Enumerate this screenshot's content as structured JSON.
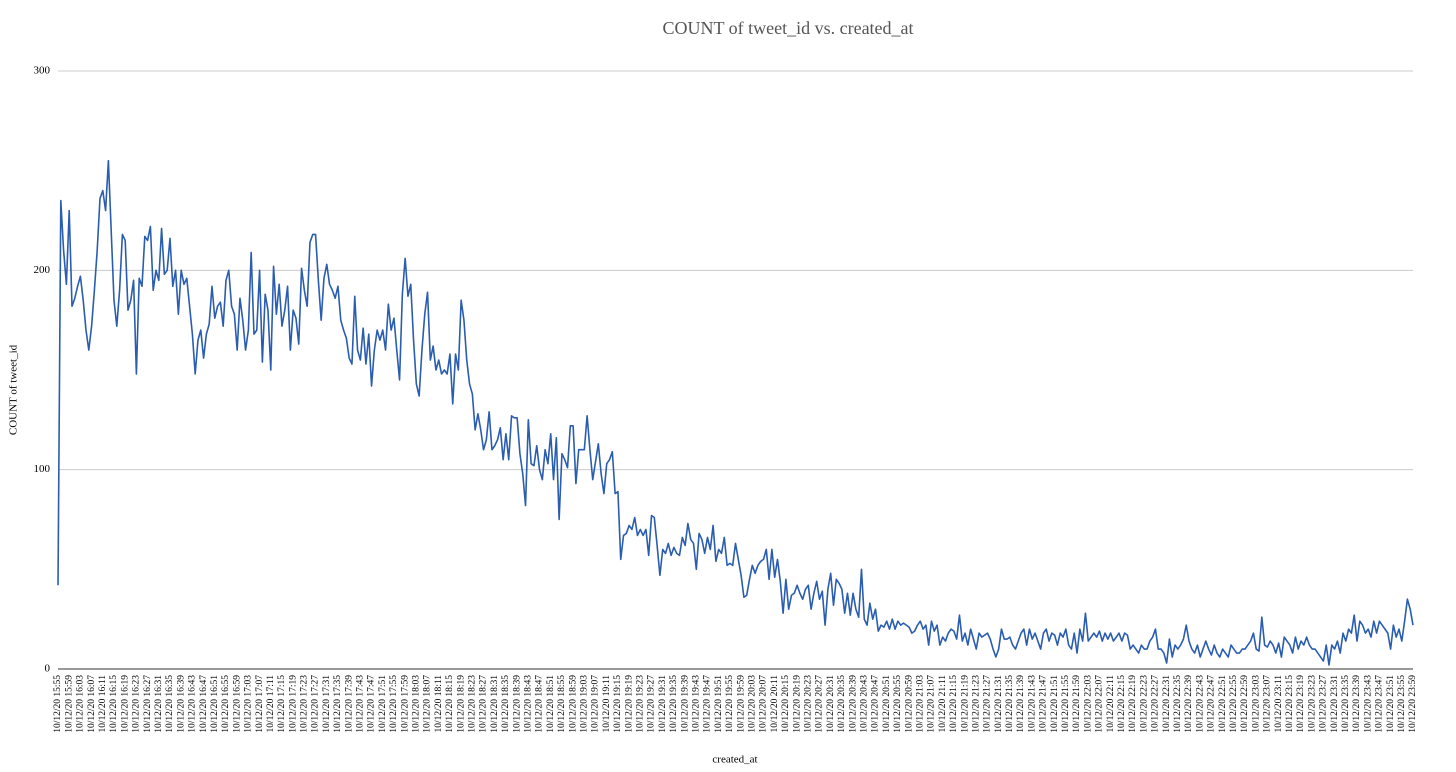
{
  "chart_data": {
    "type": "line",
    "title": "COUNT of tweet_id vs. created_at",
    "x_label": "created_at",
    "y_label": "COUNT of tweet_id",
    "color": "#2a5db0",
    "grid": true,
    "ylim": [
      0,
      300
    ],
    "yticks": [
      0,
      100,
      200,
      300
    ],
    "categories": [
      "10/12/20 15:55",
      null,
      null,
      null,
      "10/12/20 15:59",
      null,
      null,
      null,
      "10/12/20 16:03",
      null,
      null,
      null,
      "10/12/20 16:07",
      null,
      null,
      null,
      "10/12/20 16:11",
      null,
      null,
      null,
      "10/12/20 16:15",
      null,
      null,
      null,
      "10/12/20 16:19",
      null,
      null,
      null,
      "10/12/20 16:23",
      null,
      null,
      null,
      "10/12/20 16:27",
      null,
      null,
      null,
      "10/12/20 16:31",
      null,
      null,
      null,
      "10/12/20 16:35",
      null,
      null,
      null,
      "10/12/20 16:39",
      null,
      null,
      null,
      "10/12/20 16:43",
      null,
      null,
      null,
      "10/12/20 16:47",
      null,
      null,
      null,
      "10/12/20 16:51",
      null,
      null,
      null,
      "10/12/20 16:55",
      null,
      null,
      null,
      "10/12/20 16:59",
      null,
      null,
      null,
      "10/12/20 17:03",
      null,
      null,
      null,
      "10/12/20 17:07",
      null,
      null,
      null,
      "10/12/20 17:11",
      null,
      null,
      null,
      "10/12/20 17:15",
      null,
      null,
      null,
      "10/12/20 17:19",
      null,
      null,
      null,
      "10/12/20 17:23",
      null,
      null,
      null,
      "10/12/20 17:27",
      null,
      null,
      null,
      "10/12/20 17:31",
      null,
      null,
      null,
      "10/12/20 17:35",
      null,
      null,
      null,
      "10/12/20 17:39",
      null,
      null,
      null,
      "10/12/20 17:43",
      null,
      null,
      null,
      "10/12/20 17:47",
      null,
      null,
      null,
      "10/12/20 17:51",
      null,
      null,
      null,
      "10/12/20 17:55",
      null,
      null,
      null,
      "10/12/20 17:59",
      null,
      null,
      null,
      "10/12/20 18:03",
      null,
      null,
      null,
      "10/12/20 18:07",
      null,
      null,
      null,
      "10/12/20 18:11",
      null,
      null,
      null,
      "10/12/20 18:15",
      null,
      null,
      null,
      "10/12/20 18:19",
      null,
      null,
      null,
      "10/12/20 18:23",
      null,
      null,
      null,
      "10/12/20 18:27",
      null,
      null,
      null,
      "10/12/20 18:31",
      null,
      null,
      null,
      "10/12/20 18:35",
      null,
      null,
      null,
      "10/12/20 18:39",
      null,
      null,
      null,
      "10/12/20 18:43",
      null,
      null,
      null,
      "10/12/20 18:47",
      null,
      null,
      null,
      "10/12/20 18:51",
      null,
      null,
      null,
      "10/12/20 18:55",
      null,
      null,
      null,
      "10/12/20 18:59",
      null,
      null,
      null,
      "10/12/20 19:03",
      null,
      null,
      null,
      "10/12/20 19:07",
      null,
      null,
      null,
      "10/12/20 19:11",
      null,
      null,
      null,
      "10/12/20 19:15",
      null,
      null,
      null,
      "10/12/20 19:19",
      null,
      null,
      null,
      "10/12/20 19:23",
      null,
      null,
      null,
      "10/12/20 19:27",
      null,
      null,
      null,
      "10/12/20 19:31",
      null,
      null,
      null,
      "10/12/20 19:35",
      null,
      null,
      null,
      "10/12/20 19:39",
      null,
      null,
      null,
      "10/12/20 19:43",
      null,
      null,
      null,
      "10/12/20 19:47",
      null,
      null,
      null,
      "10/12/20 19:51",
      null,
      null,
      null,
      "10/12/20 19:55",
      null,
      null,
      null,
      "10/12/20 19:59",
      null,
      null,
      null,
      "10/12/20 20:03",
      null,
      null,
      null,
      "10/12/20 20:07",
      null,
      null,
      null,
      "10/12/20 20:11",
      null,
      null,
      null,
      "10/12/20 20:15",
      null,
      null,
      null,
      "10/12/20 20:19",
      null,
      null,
      null,
      "10/12/20 20:23",
      null,
      null,
      null,
      "10/12/20 20:27",
      null,
      null,
      null,
      "10/12/20 20:31",
      null,
      null,
      null,
      "10/12/20 20:35",
      null,
      null,
      null,
      "10/12/20 20:39",
      null,
      null,
      null,
      "10/12/20 20:43",
      null,
      null,
      null,
      "10/12/20 20:47",
      null,
      null,
      null,
      "10/12/20 20:51",
      null,
      null,
      null,
      "10/12/20 20:55",
      null,
      null,
      null,
      "10/12/20 20:59",
      null,
      null,
      null,
      "10/12/20 21:03",
      null,
      null,
      null,
      "10/12/20 21:07",
      null,
      null,
      null,
      "10/12/20 21:11",
      null,
      null,
      null,
      "10/12/20 21:15",
      null,
      null,
      null,
      "10/12/20 21:19",
      null,
      null,
      null,
      "10/12/20 21:23",
      null,
      null,
      null,
      "10/12/20 21:27",
      null,
      null,
      null,
      "10/12/20 21:31",
      null,
      null,
      null,
      "10/12/20 21:35",
      null,
      null,
      null,
      "10/12/20 21:39",
      null,
      null,
      null,
      "10/12/20 21:43",
      null,
      null,
      null,
      "10/12/20 21:47",
      null,
      null,
      null,
      "10/12/20 21:51",
      null,
      null,
      null,
      "10/12/20 21:55",
      null,
      null,
      null,
      "10/12/20 21:59",
      null,
      null,
      null,
      "10/12/20 22:03",
      null,
      null,
      null,
      "10/12/20 22:07",
      null,
      null,
      null,
      "10/12/20 22:11",
      null,
      null,
      null,
      "10/12/20 22:15",
      null,
      null,
      null,
      "10/12/20 22:19",
      null,
      null,
      null,
      "10/12/20 22:23",
      null,
      null,
      null,
      "10/12/20 22:27",
      null,
      null,
      null,
      "10/12/20 22:31",
      null,
      null,
      null,
      "10/12/20 22:35",
      null,
      null,
      null,
      "10/12/20 22:39",
      null,
      null,
      null,
      "10/12/20 22:43",
      null,
      null,
      null,
      "10/12/20 22:47",
      null,
      null,
      null,
      "10/12/20 22:51",
      null,
      null,
      null,
      "10/12/20 22:55",
      null,
      null,
      null,
      "10/12/20 22:59",
      null,
      null,
      null,
      "10/12/20 23:03",
      null,
      null,
      null,
      "10/12/20 23:07",
      null,
      null,
      null,
      "10/12/20 23:11",
      null,
      null,
      null,
      "10/12/20 23:15",
      null,
      null,
      null,
      "10/12/20 23:19",
      null,
      null,
      null,
      "10/12/20 23:23",
      null,
      null,
      null,
      "10/12/20 23:27",
      null,
      null,
      null,
      "10/12/20 23:31",
      null,
      null,
      null,
      "10/12/20 23:35",
      null,
      null,
      null,
      "10/12/20 23:39",
      null,
      null,
      null,
      "10/12/20 23:43",
      null,
      null,
      null,
      "10/12/20 23:47",
      null,
      null,
      null,
      "10/12/20 23:51",
      null,
      null,
      null,
      "10/12/20 23:55",
      null,
      null,
      null,
      "10/12/20 23:59"
    ],
    "values": [
      42,
      235,
      210,
      193,
      230,
      182,
      186,
      192,
      197,
      185,
      170,
      160,
      172,
      190,
      210,
      236,
      240,
      230,
      255,
      220,
      185,
      172,
      190,
      218,
      215,
      180,
      185,
      195,
      148,
      196,
      192,
      217,
      215,
      222,
      190,
      200,
      195,
      221,
      198,
      200,
      216,
      192,
      200,
      178,
      200,
      193,
      196,
      182,
      168,
      148,
      165,
      170,
      156,
      168,
      173,
      192,
      176,
      182,
      184,
      172,
      195,
      200,
      182,
      178,
      160,
      186,
      175,
      160,
      170,
      209,
      168,
      170,
      200,
      154,
      188,
      180,
      150,
      202,
      178,
      193,
      172,
      180,
      192,
      160,
      180,
      176,
      163,
      201,
      190,
      182,
      214,
      218,
      218,
      195,
      175,
      196,
      203,
      193,
      190,
      186,
      192,
      175,
      170,
      166,
      156,
      153,
      187,
      160,
      155,
      171,
      153,
      168,
      142,
      160,
      170,
      165,
      170,
      160,
      183,
      170,
      176,
      160,
      145,
      188,
      206,
      187,
      193,
      165,
      143,
      137,
      160,
      178,
      189,
      155,
      162,
      150,
      155,
      148,
      150,
      148,
      158,
      133,
      158,
      150,
      185,
      175,
      155,
      143,
      138,
      120,
      128,
      120,
      110,
      115,
      129,
      110,
      112,
      115,
      121,
      105,
      118,
      105,
      127,
      126,
      126,
      108,
      98,
      82,
      125,
      103,
      102,
      112,
      100,
      95,
      110,
      103,
      118,
      95,
      116,
      75,
      108,
      105,
      101,
      122,
      122,
      93,
      110,
      110,
      110,
      127,
      110,
      95,
      104,
      113,
      98,
      88,
      103,
      105,
      109,
      88,
      89,
      55,
      67,
      68,
      72,
      70,
      76,
      67,
      70,
      67,
      70,
      57,
      77,
      76,
      62,
      47,
      60,
      58,
      63,
      57,
      61,
      58,
      57,
      66,
      62,
      73,
      65,
      63,
      50,
      68,
      65,
      58,
      66,
      60,
      72,
      54,
      60,
      58,
      66,
      52,
      53,
      52,
      63,
      55,
      47,
      36,
      37,
      45,
      52,
      48,
      52,
      54,
      55,
      60,
      45,
      60,
      46,
      55,
      44,
      28,
      45,
      30,
      37,
      38,
      42,
      38,
      35,
      40,
      42,
      30,
      38,
      44,
      35,
      39,
      22,
      40,
      48,
      32,
      45,
      43,
      40,
      28,
      38,
      27,
      38,
      30,
      26,
      50,
      25,
      22,
      33,
      25,
      30,
      19,
      22,
      21,
      24,
      20,
      25,
      20,
      24,
      22,
      23,
      22,
      21,
      18,
      19,
      22,
      24,
      20,
      22,
      12,
      24,
      19,
      22,
      12,
      16,
      14,
      18,
      20,
      19,
      15,
      27,
      14,
      18,
      12,
      20,
      15,
      10,
      18,
      16,
      17,
      18,
      15,
      10,
      6,
      10,
      20,
      15,
      15,
      16,
      12,
      10,
      14,
      18,
      20,
      12,
      20,
      15,
      18,
      14,
      10,
      18,
      20,
      14,
      18,
      17,
      12,
      18,
      16,
      20,
      12,
      10,
      18,
      8,
      20,
      14,
      28,
      14,
      16,
      18,
      16,
      19,
      14,
      18,
      15,
      18,
      14,
      16,
      18,
      14,
      18,
      17,
      10,
      12,
      10,
      8,
      12,
      10,
      10,
      14,
      16,
      20,
      10,
      10,
      8,
      3,
      15,
      6,
      12,
      10,
      12,
      15,
      22,
      14,
      10,
      8,
      12,
      6,
      10,
      14,
      10,
      7,
      12,
      8,
      6,
      10,
      8,
      6,
      12,
      10,
      8,
      8,
      10,
      10,
      12,
      14,
      18,
      10,
      9,
      26,
      12,
      11,
      14,
      12,
      8,
      13,
      6,
      16,
      14,
      12,
      8,
      16,
      10,
      14,
      12,
      16,
      12,
      10,
      10,
      8,
      6,
      4,
      12,
      2,
      12,
      10,
      14,
      8,
      18,
      14,
      20,
      18,
      27,
      14,
      24,
      22,
      18,
      20,
      16,
      24,
      18,
      24,
      22,
      20,
      18,
      10,
      22,
      16,
      20,
      14,
      24,
      35,
      30,
      22
    ]
  }
}
